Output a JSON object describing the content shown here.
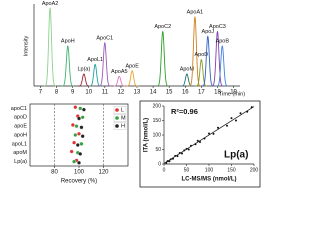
{
  "chart_data": [
    {
      "type": "chromatogram",
      "xlabel": "Time (min)",
      "ylabel": "Intensity",
      "xlim": [
        6.6,
        19.4
      ],
      "xticks": [
        7,
        8,
        9,
        10,
        11,
        12,
        13,
        14,
        15,
        16,
        17,
        18,
        19
      ],
      "ylim": [
        0,
        100
      ],
      "peaks": [
        {
          "name": "ApoA2",
          "color": "#8fd18f",
          "x": 7.6,
          "value": 97
        },
        {
          "name": "ApoH",
          "color": "#3cb371",
          "x": 8.7,
          "value": 50
        },
        {
          "name": "Lp(a)",
          "color": "#a02030",
          "x": 9.7,
          "value": 15
        },
        {
          "name": "ApoL1",
          "color": "#20a0a0",
          "x": 10.4,
          "value": 27
        },
        {
          "name": "ApoC1",
          "color": "#9b59b6",
          "x": 11.0,
          "value": 54
        },
        {
          "name": "ApoA5",
          "color": "#e377c2",
          "x": 11.9,
          "value": 12
        },
        {
          "name": "ApoE",
          "color": "#f0a030",
          "x": 12.7,
          "value": 19
        },
        {
          "name": "ApoC2",
          "color": "#2ca02c",
          "x": 14.6,
          "value": 68
        },
        {
          "name": "ApoM",
          "color": "#207070",
          "x": 16.1,
          "value": 15
        },
        {
          "name": "ApoA1",
          "color": "#d08020",
          "x": 16.6,
          "value": 86
        },
        {
          "name": "ApoD",
          "color": "#8a9a20",
          "x": 17.0,
          "value": 33
        },
        {
          "name": "ApoJ",
          "color": "#3060c0",
          "x": 17.4,
          "value": 62
        },
        {
          "name": "ApoC3",
          "color": "#8040b0",
          "x": 18.0,
          "value": 68
        },
        {
          "name": "ApoB",
          "color": "#4080e0",
          "x": 18.3,
          "value": 50
        }
      ]
    },
    {
      "type": "dot",
      "xlabel": "Recovery (%)",
      "categories": [
        "apoC1",
        "apoD",
        "apoE",
        "apoH",
        "apoL1",
        "apoM",
        "Lp(a)"
      ],
      "xlim": [
        60,
        140
      ],
      "xticks": [
        80,
        100,
        120
      ],
      "reference_lines": [
        80,
        120
      ],
      "legend": "top-right",
      "series": [
        {
          "name": "L",
          "color": "#e03030",
          "values": [
            97,
            99,
            95,
            100,
            96,
            94,
            98
          ]
        },
        {
          "name": "M",
          "color": "#30a040",
          "values": [
            101,
            103,
            98,
            97,
            102,
            99,
            96
          ]
        },
        {
          "name": "H",
          "color": "#222222",
          "values": [
            104,
            100,
            102,
            103,
            99,
            101,
            100
          ]
        }
      ]
    },
    {
      "type": "scatter",
      "xlabel": "LC-MS/MS (nmol/L)",
      "ylabel": "ITA (nmol/L)",
      "annotation": "R²=0.96",
      "label": "Lp(a)",
      "xlim": [
        0,
        200
      ],
      "ylim": [
        0,
        200
      ],
      "xticks": [
        0,
        50,
        100,
        150,
        200
      ],
      "yticks": [
        0,
        50,
        100,
        150,
        200
      ],
      "color": "#111111",
      "x": [
        5,
        8,
        12,
        15,
        20,
        25,
        30,
        35,
        40,
        45,
        50,
        55,
        60,
        70,
        75,
        80,
        90,
        100,
        110,
        120,
        140,
        150,
        160,
        170,
        185,
        195
      ],
      "y": [
        4,
        10,
        9,
        16,
        18,
        28,
        27,
        38,
        36,
        47,
        52,
        50,
        63,
        68,
        80,
        76,
        88,
        105,
        104,
        125,
        132,
        158,
        150,
        175,
        180,
        196
      ],
      "trendline": {
        "x": [
          0,
          200
        ],
        "y": [
          2,
          198
        ]
      }
    }
  ]
}
